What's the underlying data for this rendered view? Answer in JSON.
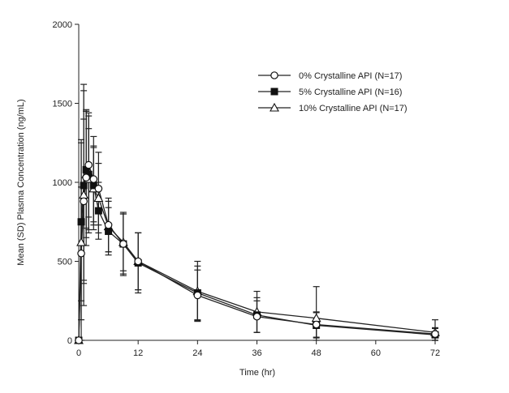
{
  "chart_data": {
    "type": "line",
    "xlabel": "Time (hr)",
    "ylabel": "Mean (SD) Plasma Concentration (ng/mL)",
    "xlim": [
      0,
      72
    ],
    "ylim": [
      0,
      2000
    ],
    "xticks": [
      0,
      12,
      24,
      36,
      48,
      60,
      72
    ],
    "yticks": [
      0,
      500,
      1000,
      1500,
      2000
    ],
    "grid": false,
    "legend_position": "top-right",
    "series": [
      {
        "name": "0% Crystalline API (N=17)",
        "marker": "circle-open",
        "x": [
          0,
          0.5,
          1,
          1.5,
          2,
          3,
          4,
          6,
          9,
          12,
          24,
          36,
          48,
          72
        ],
        "y": [
          0,
          550,
          880,
          1030,
          1110,
          1020,
          960,
          730,
          610,
          500,
          285,
          150,
          100,
          40
        ],
        "sd": [
          0,
          420,
          520,
          430,
          330,
          270,
          230,
          170,
          190,
          180,
          160,
          100,
          80,
          40
        ]
      },
      {
        "name": "5% Crystalline API (N=16)",
        "marker": "square-filled",
        "x": [
          0,
          0.5,
          1,
          1.5,
          2,
          3,
          4,
          6,
          9,
          12,
          24,
          36,
          48,
          72
        ],
        "y": [
          0,
          750,
          980,
          1080,
          1050,
          980,
          820,
          690,
          610,
          490,
          300,
          160,
          95,
          35
        ],
        "sd": [
          0,
          500,
          600,
          370,
          370,
          250,
          180,
          150,
          200,
          190,
          170,
          110,
          80,
          40
        ]
      },
      {
        "name": "10% Crystalline API  (N=17)",
        "marker": "triangle-open",
        "x": [
          0,
          0.5,
          1,
          1.5,
          2,
          3,
          4,
          6,
          9,
          12,
          24,
          36,
          48,
          72
        ],
        "y": [
          0,
          620,
          920,
          1050,
          1020,
          960,
          900,
          720,
          620,
          500,
          310,
          180,
          140,
          50
        ],
        "sd": [
          0,
          650,
          700,
          400,
          320,
          260,
          220,
          160,
          180,
          180,
          190,
          130,
          200,
          80
        ]
      }
    ]
  }
}
